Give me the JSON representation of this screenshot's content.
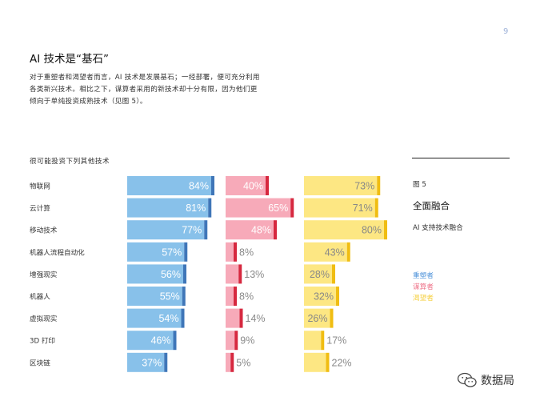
{
  "page_number": "9",
  "title": "AI 技术是“基石”",
  "intro": "对于重塑者和渴望者而言，AI 技术是发展基石；一经部署，便可充分利用各类新兴技术。相比之下，谋算者采用的新技术却十分有限，因为他们更倾向于单纯投资成熟技术（见图 5）。",
  "chart_subtitle": "很可能投资下列其他技术",
  "figure": {
    "label": "图 5",
    "title": "全面融合",
    "subtitle": "AI 支持技术融合"
  },
  "legend": [
    {
      "name": "重塑者",
      "color": "#4a90d9"
    },
    {
      "name": "谋算者",
      "color": "#ee6f86"
    },
    {
      "name": "渴望者",
      "color": "#f5cf3c"
    }
  ],
  "watermark": "数据局",
  "chart_data": {
    "type": "bar",
    "categories": [
      "物联网",
      "云计算",
      "移动技术",
      "机器人流程自动化",
      "增强现实",
      "机器人",
      "虚拟现实",
      "3D 打印",
      "区块链"
    ],
    "series": [
      {
        "name": "重塑者",
        "values": [
          84,
          81,
          77,
          57,
          56,
          55,
          54,
          46,
          37
        ],
        "fill": "#88c1ea",
        "accent": "#3f76b8",
        "label_color": "#ffffff"
      },
      {
        "name": "谋算者",
        "values": [
          40,
          65,
          48,
          8,
          13,
          8,
          14,
          9,
          5
        ],
        "fill": "#f7aab9",
        "accent": "#d6283f",
        "label_color": "#ffffff"
      },
      {
        "name": "渴望者",
        "values": [
          73,
          71,
          80,
          43,
          28,
          32,
          26,
          17,
          22
        ],
        "fill": "#fde783",
        "accent": "#f0bd12",
        "label_color": "#888888"
      }
    ],
    "value_suffix": "%",
    "ylim": [
      0,
      100
    ]
  }
}
